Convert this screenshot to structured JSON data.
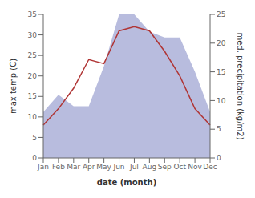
{
  "chart_data": {
    "type": "line",
    "categories": [
      "Jan",
      "Feb",
      "Mar",
      "Apr",
      "May",
      "Jun",
      "Jul",
      "Aug",
      "Sep",
      "Oct",
      "Nov",
      "Dec"
    ],
    "series": [
      {
        "type": "area",
        "color": "#b8bcde",
        "axis": "y2",
        "values": [
          8,
          11,
          9,
          9,
          16,
          25,
          25,
          22,
          21,
          21,
          15,
          8
        ]
      },
      {
        "type": "line",
        "color": "#b03535",
        "values": [
          8,
          12,
          17,
          24,
          23,
          31,
          32,
          31,
          26,
          20,
          12,
          8
        ]
      }
    ],
    "xlabel": "date (month)",
    "ylabel": "max temp (C)",
    "y2label": "med. precipitation (kg/m2)",
    "ylim": [
      0,
      35
    ],
    "yticks": [
      0,
      5,
      10,
      15,
      20,
      25,
      30,
      35
    ],
    "y2lim": [
      0,
      25
    ],
    "y2ticks": [
      0,
      5,
      10,
      15,
      20,
      25
    ]
  }
}
